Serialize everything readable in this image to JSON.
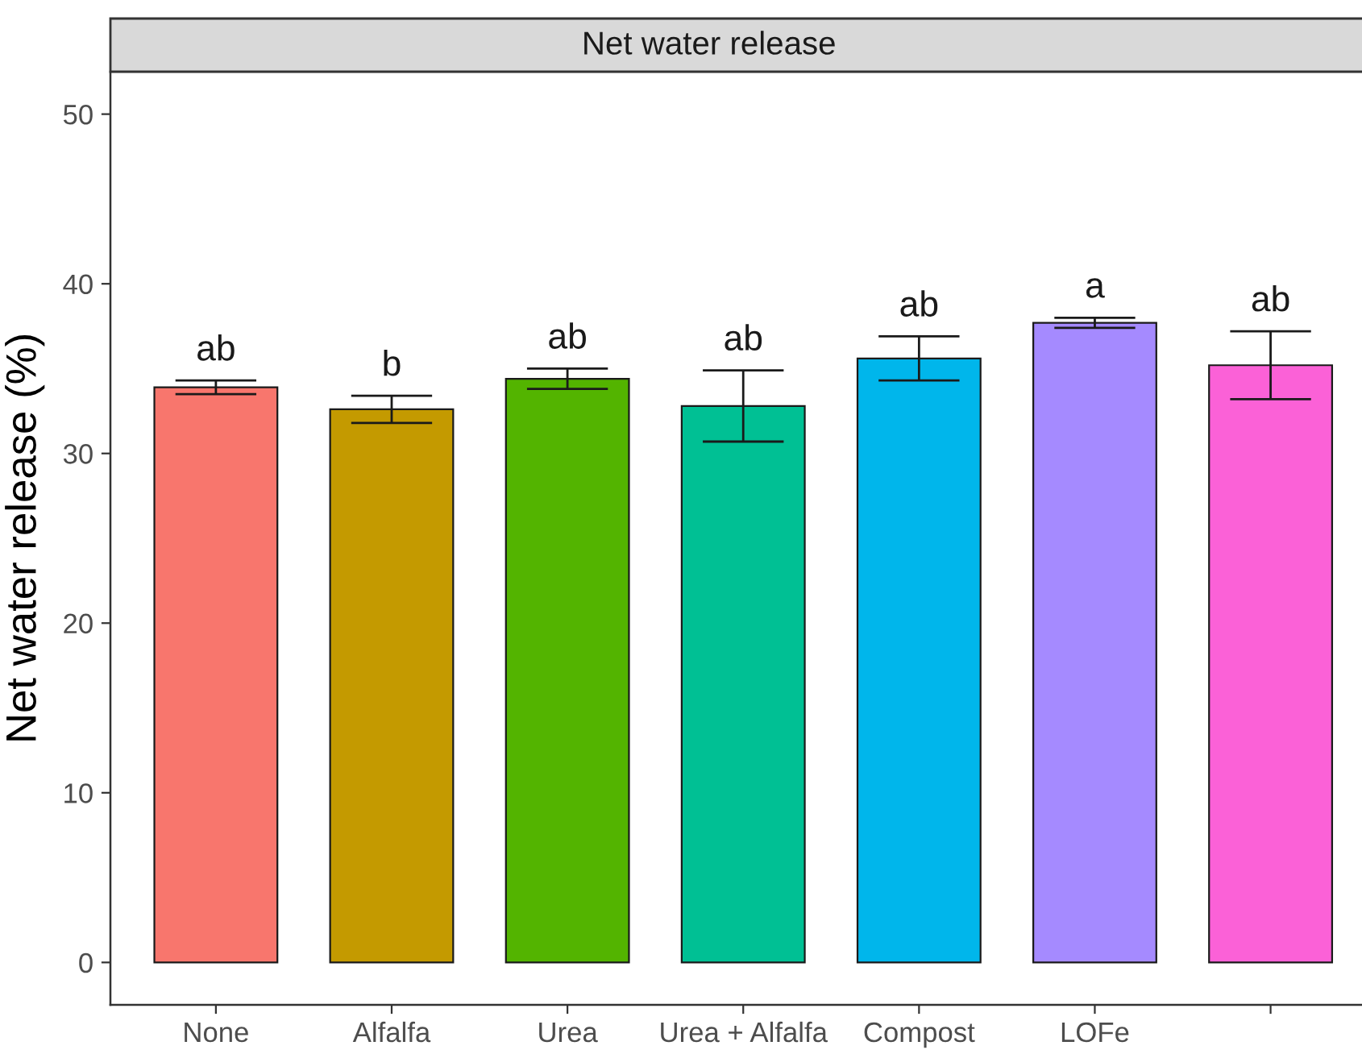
{
  "chart_data": {
    "type": "bar",
    "title": "Net water release",
    "ylabel": "Net water release (%)",
    "categories": [
      "None",
      "Alfalfa",
      "Urea",
      "Urea + Alfalfa",
      "Compost",
      "LOFe",
      null
    ],
    "values": [
      33.9,
      32.6,
      34.4,
      32.8,
      35.6,
      37.7,
      35.2
    ],
    "errors": [
      0.4,
      0.8,
      0.6,
      2.1,
      1.3,
      0.3,
      2.0
    ],
    "colors": [
      "#f8766d",
      "#c49a00",
      "#53b400",
      "#00c094",
      "#00b6eb",
      "#a58aff",
      "#fb61d7"
    ],
    "ylim": [
      -2.5,
      52.5
    ],
    "yticks": [
      0,
      10,
      20,
      30,
      40,
      50
    ],
    "grid": false,
    "legend": false,
    "annotations": [
      "ab",
      "b",
      "ab",
      "ab",
      "ab",
      "a",
      "ab"
    ]
  }
}
